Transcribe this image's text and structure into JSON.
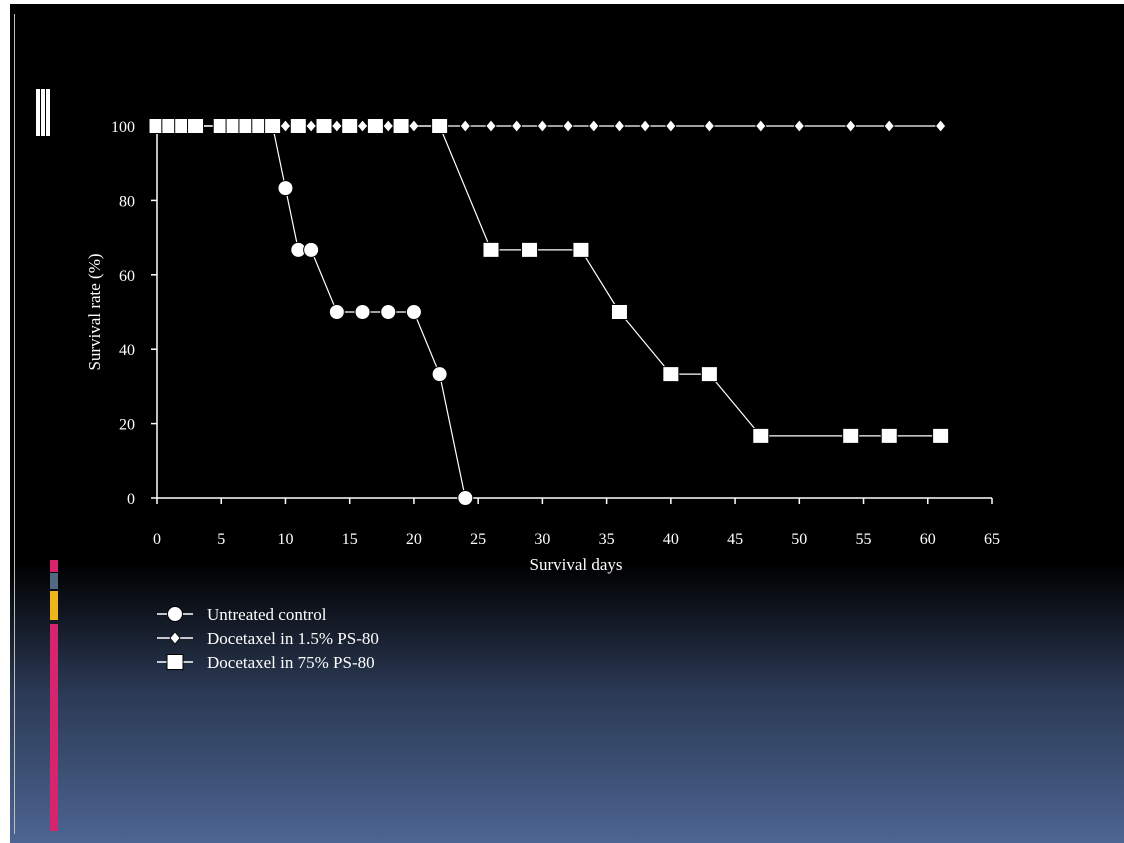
{
  "colors": {
    "slide_top": "#000000",
    "slide_bottom": "#4d6592",
    "accent_magenta": "#d6246e",
    "accent_slate": "#506a84",
    "accent_gold": "#f0b41c",
    "chart_ink": "#ffffff"
  },
  "chart_data": {
    "type": "line",
    "xlabel": "Survival days",
    "ylabel": "Survival rate (%)",
    "xlim": [
      0,
      65
    ],
    "ylim": [
      0,
      100
    ],
    "xticks": [
      0,
      5,
      10,
      15,
      20,
      25,
      30,
      35,
      40,
      45,
      50,
      55,
      60,
      65
    ],
    "yticks": [
      0,
      20,
      40,
      60,
      80,
      100
    ],
    "grid": false,
    "legend_position": "bottom-left",
    "series": [
      {
        "name": "Untreated control",
        "marker": "circle",
        "x": [
          0,
          1,
          2,
          3,
          5,
          6,
          7,
          8,
          9,
          10,
          11,
          12,
          14,
          16,
          18,
          20,
          22,
          24
        ],
        "y": [
          100,
          100,
          100,
          100,
          100,
          100,
          100,
          100,
          100,
          83.3,
          66.7,
          66.7,
          50,
          50,
          50,
          50,
          33.3,
          0
        ]
      },
      {
        "name": "Docetaxel in 1.5% PS-80",
        "marker": "diamond",
        "x": [
          0,
          1,
          2,
          3,
          5,
          6,
          7,
          8,
          9,
          10,
          11,
          12,
          13,
          14,
          15,
          16,
          17,
          18,
          19,
          20,
          22,
          24,
          26,
          28,
          30,
          32,
          34,
          36,
          38,
          40,
          43,
          47,
          50,
          54,
          57,
          61
        ],
        "y": [
          100,
          100,
          100,
          100,
          100,
          100,
          100,
          100,
          100,
          100,
          100,
          100,
          100,
          100,
          100,
          100,
          100,
          100,
          100,
          100,
          100,
          100,
          100,
          100,
          100,
          100,
          100,
          100,
          100,
          100,
          100,
          100,
          100,
          100,
          100,
          100
        ]
      },
      {
        "name": "Docetaxel in 75% PS-80",
        "marker": "square",
        "x": [
          0,
          1,
          2,
          3,
          5,
          6,
          7,
          8,
          9,
          11,
          13,
          15,
          17,
          19,
          22,
          26,
          29,
          33,
          36,
          40,
          43,
          47,
          54,
          57,
          61
        ],
        "y": [
          100,
          100,
          100,
          100,
          100,
          100,
          100,
          100,
          100,
          100,
          100,
          100,
          100,
          100,
          100,
          66.7,
          66.7,
          66.7,
          50,
          33.3,
          33.3,
          16.7,
          16.7,
          16.7,
          16.7
        ]
      }
    ]
  }
}
